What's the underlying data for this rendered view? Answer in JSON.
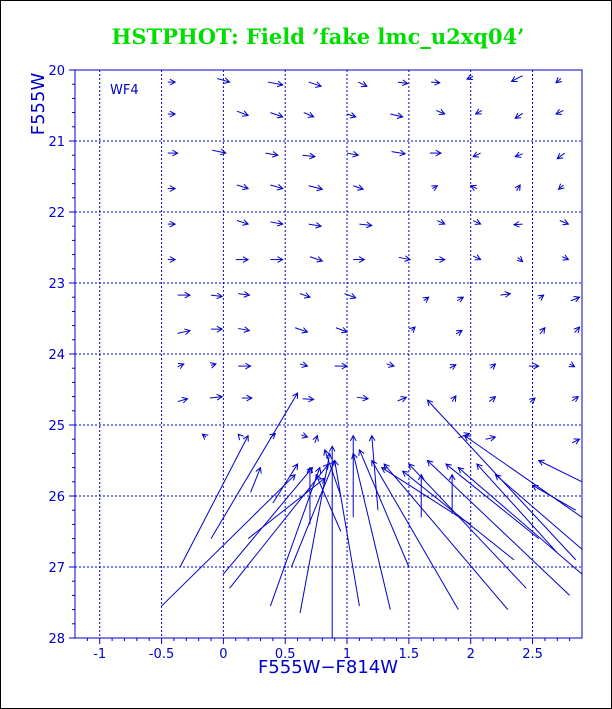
{
  "chart_data": {
    "type": "vector_field",
    "title": "HSTPHOT: Field ’fake lmc_u2xq04’",
    "xlabel": "F555W−F814W",
    "ylabel": "F555W",
    "panel_label": "WF4",
    "xlim": [
      -1.2,
      2.9
    ],
    "ylim": [
      28,
      20
    ],
    "y_inverted": true,
    "xticks": [
      -1,
      -0.5,
      0,
      0.5,
      1,
      1.5,
      2,
      2.5
    ],
    "xtick_labels": [
      "-1",
      "-0.5",
      "0",
      "0.5",
      "1",
      "1.5",
      "2",
      "2.5"
    ],
    "yticks": [
      20,
      21,
      22,
      23,
      24,
      25,
      26,
      27,
      28
    ],
    "ytick_labels": [
      "20",
      "21",
      "22",
      "23",
      "24",
      "25",
      "26",
      "27",
      "28"
    ],
    "grid": true,
    "colors": {
      "title": "#00dd00",
      "axes": "#0000cc",
      "arrows": "#0000cc",
      "frame": "#000000"
    },
    "arrows": [
      {
        "x0": -0.45,
        "y0": 20.17,
        "x1": -0.39,
        "y1": 20.17
      },
      {
        "x0": -0.05,
        "y0": 20.12,
        "x1": 0.05,
        "y1": 20.17
      },
      {
        "x0": 0.36,
        "y0": 20.17,
        "x1": 0.48,
        "y1": 20.21
      },
      {
        "x0": 0.69,
        "y0": 20.17,
        "x1": 0.79,
        "y1": 20.23
      },
      {
        "x0": 1.09,
        "y0": 20.17,
        "x1": 1.16,
        "y1": 20.23
      },
      {
        "x0": 1.41,
        "y0": 20.17,
        "x1": 1.49,
        "y1": 20.19
      },
      {
        "x0": 1.68,
        "y0": 20.17,
        "x1": 1.75,
        "y1": 20.18
      },
      {
        "x0": 2.02,
        "y0": 20.09,
        "x1": 1.97,
        "y1": 20.13
      },
      {
        "x0": 2.42,
        "y0": 20.08,
        "x1": 2.33,
        "y1": 20.16
      },
      {
        "x0": 2.73,
        "y0": 20.12,
        "x1": 2.69,
        "y1": 20.18
      },
      {
        "x0": -0.45,
        "y0": 20.62,
        "x1": -0.39,
        "y1": 20.62
      },
      {
        "x0": 0.11,
        "y0": 20.58,
        "x1": 0.2,
        "y1": 20.64
      },
      {
        "x0": 0.38,
        "y0": 20.6,
        "x1": 0.48,
        "y1": 20.66
      },
      {
        "x0": 0.65,
        "y0": 20.6,
        "x1": 0.73,
        "y1": 20.66
      },
      {
        "x0": 1.0,
        "y0": 20.62,
        "x1": 1.07,
        "y1": 20.66
      },
      {
        "x0": 1.35,
        "y0": 20.62,
        "x1": 1.45,
        "y1": 20.66
      },
      {
        "x0": 1.72,
        "y0": 20.57,
        "x1": 1.79,
        "y1": 20.62
      },
      {
        "x0": 2.09,
        "y0": 20.57,
        "x1": 2.04,
        "y1": 20.62
      },
      {
        "x0": 2.42,
        "y0": 20.61,
        "x1": 2.36,
        "y1": 20.68
      },
      {
        "x0": 2.75,
        "y0": 20.57,
        "x1": 2.69,
        "y1": 20.62
      },
      {
        "x0": -0.45,
        "y0": 21.17,
        "x1": -0.37,
        "y1": 21.17
      },
      {
        "x0": -0.09,
        "y0": 21.13,
        "x1": 0.02,
        "y1": 21.17
      },
      {
        "x0": 0.34,
        "y0": 21.17,
        "x1": 0.44,
        "y1": 21.2
      },
      {
        "x0": 0.64,
        "y0": 21.2,
        "x1": 0.74,
        "y1": 21.22
      },
      {
        "x0": 1.0,
        "y0": 21.17,
        "x1": 1.09,
        "y1": 21.2
      },
      {
        "x0": 1.36,
        "y0": 21.15,
        "x1": 1.47,
        "y1": 21.18
      },
      {
        "x0": 1.67,
        "y0": 21.17,
        "x1": 1.76,
        "y1": 21.17
      },
      {
        "x0": 2.08,
        "y0": 21.17,
        "x1": 2.02,
        "y1": 21.22
      },
      {
        "x0": 2.42,
        "y0": 21.18,
        "x1": 2.36,
        "y1": 21.22
      },
      {
        "x0": 2.76,
        "y0": 21.17,
        "x1": 2.7,
        "y1": 21.25
      },
      {
        "x0": -0.45,
        "y0": 21.67,
        "x1": -0.39,
        "y1": 21.67
      },
      {
        "x0": 0.11,
        "y0": 21.62,
        "x1": 0.2,
        "y1": 21.67
      },
      {
        "x0": 0.38,
        "y0": 21.62,
        "x1": 0.48,
        "y1": 21.67
      },
      {
        "x0": 0.69,
        "y0": 21.63,
        "x1": 0.8,
        "y1": 21.68
      },
      {
        "x0": 1.05,
        "y0": 21.63,
        "x1": 1.13,
        "y1": 21.68
      },
      {
        "x0": 1.69,
        "y0": 21.67,
        "x1": 1.73,
        "y1": 21.63
      },
      {
        "x0": 2.05,
        "y0": 21.67,
        "x1": 2.0,
        "y1": 21.63
      },
      {
        "x0": 2.37,
        "y0": 21.7,
        "x1": 2.4,
        "y1": 21.62
      },
      {
        "x0": 2.75,
        "y0": 21.62,
        "x1": 2.71,
        "y1": 21.68
      },
      {
        "x0": -0.45,
        "y0": 22.17,
        "x1": -0.39,
        "y1": 22.17
      },
      {
        "x0": 0.11,
        "y0": 22.12,
        "x1": 0.2,
        "y1": 22.17
      },
      {
        "x0": 0.38,
        "y0": 22.14,
        "x1": 0.48,
        "y1": 22.17
      },
      {
        "x0": 0.69,
        "y0": 22.17,
        "x1": 0.79,
        "y1": 22.2
      },
      {
        "x0": 1.1,
        "y0": 22.17,
        "x1": 1.2,
        "y1": 22.19
      },
      {
        "x0": 1.73,
        "y0": 22.12,
        "x1": 1.79,
        "y1": 22.17
      },
      {
        "x0": 2.02,
        "y0": 22.12,
        "x1": 2.08,
        "y1": 22.17
      },
      {
        "x0": 2.42,
        "y0": 22.17,
        "x1": 2.35,
        "y1": 22.18
      },
      {
        "x0": 2.72,
        "y0": 22.12,
        "x1": 2.79,
        "y1": 22.17
      },
      {
        "x0": -0.45,
        "y0": 22.67,
        "x1": -0.39,
        "y1": 22.67
      },
      {
        "x0": 0.1,
        "y0": 22.67,
        "x1": 0.2,
        "y1": 22.67
      },
      {
        "x0": 0.38,
        "y0": 22.67,
        "x1": 0.48,
        "y1": 22.67
      },
      {
        "x0": 0.7,
        "y0": 22.63,
        "x1": 0.8,
        "y1": 22.69
      },
      {
        "x0": 1.05,
        "y0": 22.67,
        "x1": 1.14,
        "y1": 22.67
      },
      {
        "x0": 1.42,
        "y0": 22.64,
        "x1": 1.51,
        "y1": 22.67
      },
      {
        "x0": 1.71,
        "y0": 22.67,
        "x1": 1.79,
        "y1": 22.67
      },
      {
        "x0": 2.02,
        "y0": 22.62,
        "x1": 2.08,
        "y1": 22.67
      },
      {
        "x0": 2.38,
        "y0": 22.64,
        "x1": 2.42,
        "y1": 22.7
      },
      {
        "x0": 2.74,
        "y0": 22.63,
        "x1": 2.79,
        "y1": 22.67
      },
      {
        "x0": -0.37,
        "y0": 23.17,
        "x1": -0.27,
        "y1": 23.17
      },
      {
        "x0": -0.1,
        "y0": 23.17,
        "x1": -0.01,
        "y1": 23.19
      },
      {
        "x0": 0.12,
        "y0": 23.15,
        "x1": 0.21,
        "y1": 23.17
      },
      {
        "x0": 0.62,
        "y0": 23.15,
        "x1": 0.7,
        "y1": 23.2
      },
      {
        "x0": 0.98,
        "y0": 23.15,
        "x1": 1.07,
        "y1": 23.21
      },
      {
        "x0": 1.62,
        "y0": 23.25,
        "x1": 1.66,
        "y1": 23.2
      },
      {
        "x0": 1.89,
        "y0": 23.25,
        "x1": 1.94,
        "y1": 23.2
      },
      {
        "x0": 2.24,
        "y0": 23.17,
        "x1": 2.32,
        "y1": 23.15
      },
      {
        "x0": 2.55,
        "y0": 23.22,
        "x1": 2.59,
        "y1": 23.17
      },
      {
        "x0": 2.81,
        "y0": 23.25,
        "x1": 2.88,
        "y1": 23.2
      },
      {
        "x0": -0.37,
        "y0": 23.71,
        "x1": -0.27,
        "y1": 23.67
      },
      {
        "x0": -0.1,
        "y0": 23.65,
        "x1": -0.01,
        "y1": 23.65
      },
      {
        "x0": 0.12,
        "y0": 23.64,
        "x1": 0.21,
        "y1": 23.67
      },
      {
        "x0": 0.58,
        "y0": 23.63,
        "x1": 0.68,
        "y1": 23.69
      },
      {
        "x0": 0.91,
        "y0": 23.63,
        "x1": 1.0,
        "y1": 23.69
      },
      {
        "x0": 1.52,
        "y0": 23.67,
        "x1": 1.55,
        "y1": 23.62
      },
      {
        "x0": 1.88,
        "y0": 23.72,
        "x1": 1.93,
        "y1": 23.67
      },
      {
        "x0": 2.56,
        "y0": 23.72,
        "x1": 2.6,
        "y1": 23.63
      },
      {
        "x0": 2.84,
        "y0": 23.7,
        "x1": 2.88,
        "y1": 23.62
      },
      {
        "x0": -0.37,
        "y0": 24.18,
        "x1": -0.32,
        "y1": 24.14
      },
      {
        "x0": -0.1,
        "y0": 24.16,
        "x1": -0.06,
        "y1": 24.14
      },
      {
        "x0": 0.12,
        "y0": 24.17,
        "x1": 0.22,
        "y1": 24.17
      },
      {
        "x0": 0.62,
        "y0": 24.14,
        "x1": 0.68,
        "y1": 24.17
      },
      {
        "x0": 0.9,
        "y0": 24.17,
        "x1": 1.0,
        "y1": 24.17
      },
      {
        "x0": 1.32,
        "y0": 24.14,
        "x1": 1.38,
        "y1": 24.17
      },
      {
        "x0": 1.83,
        "y0": 24.2,
        "x1": 1.88,
        "y1": 24.15
      },
      {
        "x0": 2.16,
        "y0": 24.2,
        "x1": 2.2,
        "y1": 24.14
      },
      {
        "x0": 2.47,
        "y0": 24.17,
        "x1": 2.55,
        "y1": 24.17
      },
      {
        "x0": 2.8,
        "y0": 24.14,
        "x1": 2.84,
        "y1": 24.18
      },
      {
        "x0": -0.37,
        "y0": 24.67,
        "x1": -0.29,
        "y1": 24.63
      },
      {
        "x0": -0.11,
        "y0": 24.62,
        "x1": -0.01,
        "y1": 24.6
      },
      {
        "x0": 0.15,
        "y0": 24.62,
        "x1": 0.23,
        "y1": 24.62
      },
      {
        "x0": 0.64,
        "y0": 24.63,
        "x1": 0.73,
        "y1": 24.64
      },
      {
        "x0": 1.08,
        "y0": 24.61,
        "x1": 1.17,
        "y1": 24.63
      },
      {
        "x0": 1.41,
        "y0": 24.66,
        "x1": 1.48,
        "y1": 24.61
      },
      {
        "x0": 1.85,
        "y0": 24.67,
        "x1": 1.88,
        "y1": 24.59
      },
      {
        "x0": 2.15,
        "y0": 24.67,
        "x1": 2.2,
        "y1": 24.6
      },
      {
        "x0": 2.48,
        "y0": 24.68,
        "x1": 2.52,
        "y1": 24.62
      },
      {
        "x0": 2.82,
        "y0": 24.66,
        "x1": 2.87,
        "y1": 24.6
      },
      {
        "x0": -0.14,
        "y0": 25.17,
        "x1": -0.17,
        "y1": 25.13
      },
      {
        "x0": 0.13,
        "y0": 25.15,
        "x1": 0.12,
        "y1": 25.13
      },
      {
        "x0": 0.38,
        "y0": 25.18,
        "x1": 0.42,
        "y1": 25.12
      },
      {
        "x0": 0.63,
        "y0": 25.14,
        "x1": 0.68,
        "y1": 25.17
      },
      {
        "x0": 0.74,
        "y0": 25.25,
        "x1": 0.76,
        "y1": 25.15
      },
      {
        "x0": 1.9,
        "y0": 25.18,
        "x1": 1.99,
        "y1": 25.12
      },
      {
        "x0": 2.12,
        "y0": 25.2,
        "x1": 2.2,
        "y1": 25.17
      },
      {
        "x0": 2.82,
        "y0": 25.25,
        "x1": 2.88,
        "y1": 25.2
      },
      {
        "x0": -0.35,
        "y0": 27.0,
        "x1": 0.2,
        "y1": 25.15
      },
      {
        "x0": 0.22,
        "y0": 25.95,
        "x1": 0.3,
        "y1": 25.6
      },
      {
        "x0": 0.4,
        "y0": 26.1,
        "x1": 0.6,
        "y1": 25.55
      },
      {
        "x0": -0.5,
        "y0": 27.55,
        "x1": 0.58,
        "y1": 25.7
      },
      {
        "x0": -0.1,
        "y0": 26.6,
        "x1": 0.6,
        "y1": 24.55
      },
      {
        "x0": 0.0,
        "y0": 27.1,
        "x1": 0.72,
        "y1": 25.6
      },
      {
        "x0": 0.05,
        "y0": 27.3,
        "x1": 0.85,
        "y1": 25.55
      },
      {
        "x0": 0.38,
        "y0": 27.55,
        "x1": 0.78,
        "y1": 25.6
      },
      {
        "x0": 0.62,
        "y0": 27.65,
        "x1": 0.86,
        "y1": 25.4
      },
      {
        "x0": 0.55,
        "y0": 27.0,
        "x1": 0.9,
        "y1": 25.5
      },
      {
        "x0": 0.88,
        "y0": 28.0,
        "x1": 0.88,
        "y1": 25.3
      },
      {
        "x0": 0.2,
        "y0": 26.6,
        "x1": 0.82,
        "y1": 25.75
      },
      {
        "x0": 1.1,
        "y0": 27.55,
        "x1": 0.9,
        "y1": 25.5
      },
      {
        "x0": 1.35,
        "y0": 27.6,
        "x1": 1.05,
        "y1": 25.4
      },
      {
        "x0": 1.5,
        "y0": 27.0,
        "x1": 1.1,
        "y1": 25.35
      },
      {
        "x0": 1.9,
        "y0": 27.6,
        "x1": 1.2,
        "y1": 25.5
      },
      {
        "x0": 2.3,
        "y0": 27.6,
        "x1": 1.3,
        "y1": 25.55
      },
      {
        "x0": 2.45,
        "y0": 27.3,
        "x1": 1.5,
        "y1": 25.55
      },
      {
        "x0": 2.0,
        "y0": 26.4,
        "x1": 1.28,
        "y1": 25.6
      },
      {
        "x0": 2.35,
        "y0": 26.9,
        "x1": 1.45,
        "y1": 25.65
      },
      {
        "x0": 2.8,
        "y0": 27.4,
        "x1": 1.65,
        "y1": 25.5
      },
      {
        "x0": 2.55,
        "y0": 26.6,
        "x1": 1.8,
        "y1": 25.55
      },
      {
        "x0": 2.9,
        "y0": 27.1,
        "x1": 1.9,
        "y1": 25.6
      },
      {
        "x0": 2.7,
        "y0": 26.8,
        "x1": 2.05,
        "y1": 25.55
      },
      {
        "x0": 2.9,
        "y0": 26.75,
        "x1": 2.2,
        "y1": 25.7
      },
      {
        "x0": 2.85,
        "y0": 26.2,
        "x1": 2.5,
        "y1": 25.85
      },
      {
        "x0": 2.9,
        "y0": 25.8,
        "x1": 2.55,
        "y1": 25.5
      },
      {
        "x0": 2.85,
        "y0": 26.9,
        "x1": 1.65,
        "y1": 24.65
      },
      {
        "x0": 2.9,
        "y0": 26.3,
        "x1": 1.95,
        "y1": 25.15
      },
      {
        "x0": 1.05,
        "y0": 26.3,
        "x1": 1.05,
        "y1": 25.15
      },
      {
        "x0": 1.25,
        "y0": 26.2,
        "x1": 1.2,
        "y1": 25.15
      },
      {
        "x0": 0.95,
        "y0": 26.0,
        "x1": 0.82,
        "y1": 25.35
      },
      {
        "x0": 0.7,
        "y0": 26.4,
        "x1": 0.7,
        "y1": 25.6
      },
      {
        "x0": 0.95,
        "y0": 26.5,
        "x1": 0.75,
        "y1": 25.7
      },
      {
        "x0": 1.6,
        "y0": 26.3,
        "x1": 1.6,
        "y1": 25.7
      },
      {
        "x0": 1.85,
        "y0": 26.25,
        "x1": 1.85,
        "y1": 25.7
      }
    ]
  }
}
